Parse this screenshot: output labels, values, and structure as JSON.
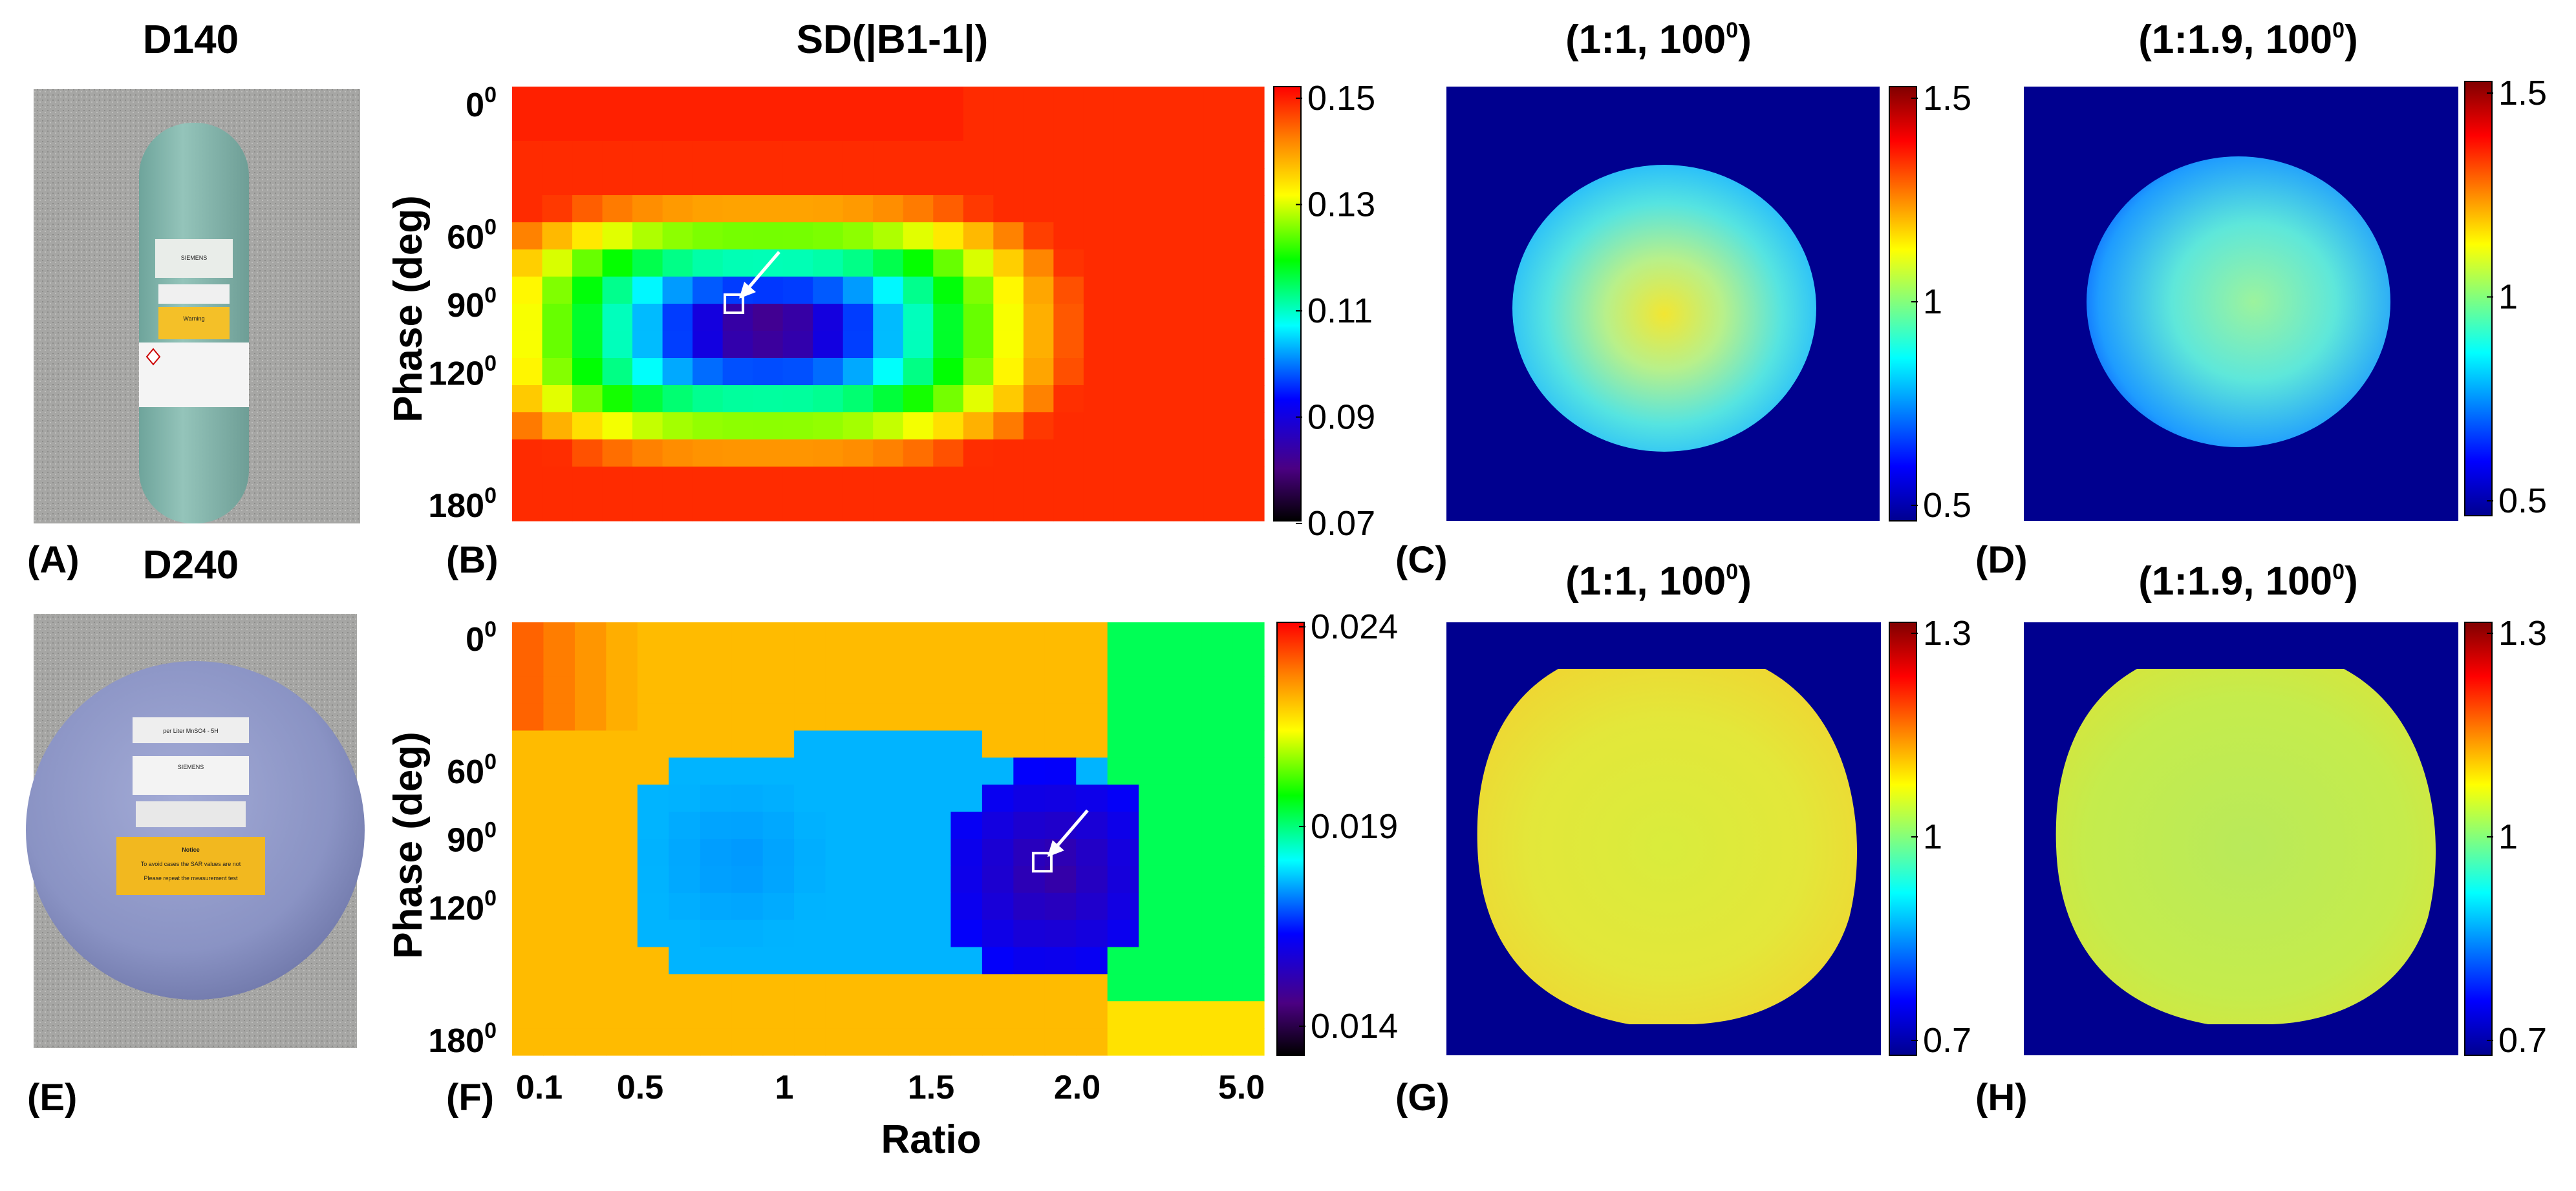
{
  "panels": {
    "A": {
      "label": "(A)",
      "title": "D140"
    },
    "B": {
      "label": "(B)",
      "title": "SD(|B1-1|)"
    },
    "C": {
      "label": "(C)",
      "title_main": "(1:1, 100",
      "title_sup": "0",
      "title_end": ")"
    },
    "D": {
      "label": "(D)",
      "title_main": "(1:1.9, 100",
      "title_sup": "0",
      "title_end": ")"
    },
    "E": {
      "label": "(E)",
      "title": "D240"
    },
    "F": {
      "label": "(F)"
    },
    "G": {
      "label": "(G)",
      "title_main": "(1:1, 100",
      "title_sup": "0",
      "title_end": ")"
    },
    "H": {
      "label": "(H)",
      "title_main": "(1:1.9, 100",
      "title_sup": "0",
      "title_end": ")"
    }
  },
  "phantom_labels": {
    "d140": [
      "SIEMENS",
      "Warning"
    ],
    "d240": [
      "per Liter MnSO4 - 5H",
      "SIEMENS",
      "Notice",
      "To avoid cases the SAR values are not",
      "Please repeat the measurement test"
    ]
  },
  "chart_data": [
    {
      "id": "B",
      "type": "heatmap",
      "title": "SD(|B1-1|)",
      "ylabel": "Phase (deg)",
      "y_ticks": [
        {
          "base": "0",
          "sup": "0"
        },
        {
          "base": "60",
          "sup": "0"
        },
        {
          "base": "90",
          "sup": "0"
        },
        {
          "base": "120",
          "sup": "0"
        },
        {
          "base": "180",
          "sup": "0"
        }
      ],
      "colorbar": {
        "min": 0.07,
        "max": 0.15,
        "ticks": [
          "0.15",
          "0.13",
          "0.11",
          "0.09",
          "0.07"
        ],
        "colormap": "jet-with-black-low"
      },
      "min_location": {
        "ratio": 1.0,
        "phase_deg": 100
      }
    },
    {
      "id": "F",
      "type": "heatmap",
      "ylabel": "Phase (deg)",
      "xlabel": "Ratio",
      "x_ticks": [
        "0.1",
        "0.5",
        "1",
        "1.5",
        "2.0",
        "5.0"
      ],
      "y_ticks": [
        {
          "base": "0",
          "sup": "0"
        },
        {
          "base": "60",
          "sup": "0"
        },
        {
          "base": "90",
          "sup": "0"
        },
        {
          "base": "120",
          "sup": "0"
        },
        {
          "base": "180",
          "sup": "0"
        }
      ],
      "colorbar": {
        "min": 0.014,
        "max": 0.024,
        "ticks": [
          "0.024",
          "0.019",
          "0.014"
        ],
        "colormap": "jet-with-black-low"
      },
      "min_location": {
        "ratio": 1.9,
        "phase_deg": 100
      }
    },
    {
      "id": "C",
      "type": "heatmap",
      "title": "(1:1, 100⁰)",
      "colorbar": {
        "min": 0.5,
        "max": 1.5,
        "ticks": [
          "1.5",
          "1",
          "0.5"
        ]
      }
    },
    {
      "id": "D",
      "type": "heatmap",
      "title": "(1:1.9, 100⁰)",
      "colorbar": {
        "min": 0.5,
        "max": 1.5,
        "ticks": [
          "1.5",
          "1",
          "0.5"
        ]
      }
    },
    {
      "id": "G",
      "type": "heatmap",
      "title": "(1:1, 100⁰)",
      "colorbar": {
        "min": 0.7,
        "max": 1.3,
        "ticks": [
          "1.3",
          "1",
          "0.7"
        ]
      }
    },
    {
      "id": "H",
      "type": "heatmap",
      "title": "(1:1.9, 100⁰)",
      "colorbar": {
        "min": 0.7,
        "max": 1.3,
        "ticks": [
          "1.3",
          "1",
          "0.7"
        ]
      }
    }
  ],
  "colors": {
    "map_background": "#00008f",
    "d140_bottle": "#7fb2a8",
    "d240_sphere": "#8a93c4",
    "photo_background": "#a9a9a7"
  }
}
